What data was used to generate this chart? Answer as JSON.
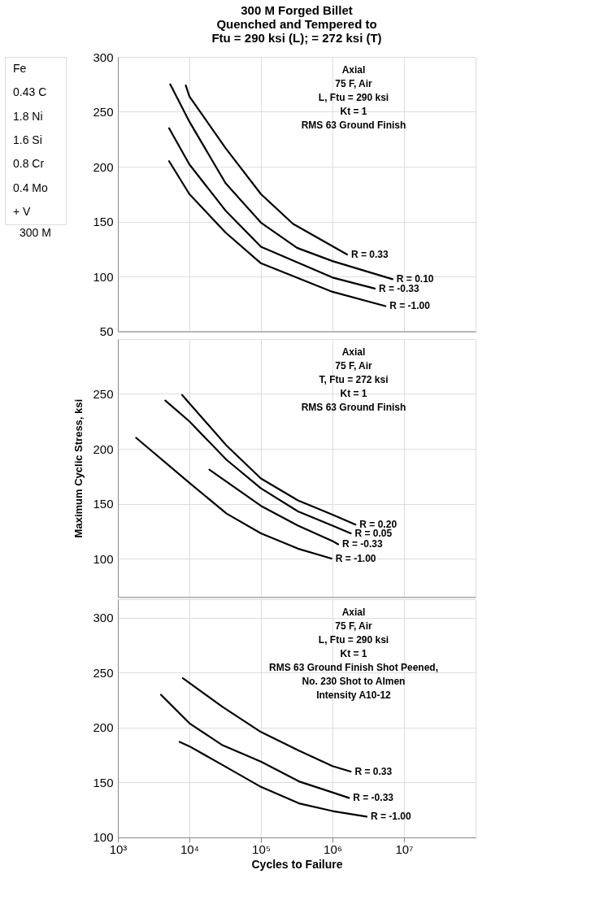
{
  "chart_data": [
    {
      "type": "other",
      "title": "300 M",
      "annotations": [
        "Fe",
        "0.43 C",
        "1.8 Ni",
        "1.6 Si",
        "0.8 Cr",
        "0.4 Mo",
        "+ V"
      ]
    },
    {
      "type": "line",
      "title": [
        "300 M Forged Billet",
        "Quenched and Tempered to",
        "Ftu = 290 ksi (L); = 272 ksi (T)"
      ],
      "log": "x",
      "grid": true,
      "tick_labels": "y",
      "xlim": [
        1000,
        100000000
      ],
      "xticks": [
        1000,
        10000,
        100000,
        1000000,
        10000000
      ],
      "ylim": [
        50,
        300
      ],
      "yticks": [
        50,
        100,
        150,
        200,
        250,
        300
      ],
      "annotations": [
        "Axial",
        "75 F, Air",
        "L, Ftu = 290 ksi",
        "Kt = 1",
        "RMS 63 Ground Finish"
      ],
      "series": [
        {
          "name": "R = 0.33",
          "color": "#000000",
          "x": [
            8900,
            10000,
            32000,
            100000,
            280000,
            1600000
          ],
          "values": [
            274,
            264,
            217,
            175,
            148,
            120
          ]
        },
        {
          "name": "R = 0.10",
          "color": "#000000",
          "x": [
            5400,
            10000,
            32000,
            100000,
            320000,
            1000000,
            6900000
          ],
          "values": [
            275,
            241,
            185,
            149,
            126,
            114,
            97.5
          ]
        },
        {
          "name": "R = -0.33",
          "color": "#000000",
          "x": [
            5200,
            10000,
            32000,
            100000,
            1000000,
            3900000
          ],
          "values": [
            235,
            202,
            160,
            127,
            99,
            89
          ]
        },
        {
          "name": "R = -1.00",
          "color": "#000000",
          "x": [
            5200,
            10000,
            32000,
            100000,
            1000000,
            5500000
          ],
          "values": [
            205,
            175,
            140,
            112,
            86,
            73
          ]
        }
      ]
    },
    {
      "type": "line",
      "ylabel": "Maximum Cyclic Stress, ksi",
      "log": "x",
      "grid": true,
      "tick_labels": "y",
      "xlim": [
        1000,
        100000000
      ],
      "xticks": [
        1000,
        10000,
        100000,
        1000000,
        10000000
      ],
      "ylim": [
        65,
        300
      ],
      "yticks": [
        100,
        150,
        200,
        250
      ],
      "annotations": [
        "Axial",
        "75 F, Air",
        "T, Ftu = 272 ksi",
        "Kt = 1",
        "RMS 63 Ground Finish"
      ],
      "series": [
        {
          "name": "R = 0.20",
          "color": "#000000",
          "x": [
            7900,
            33000,
            100000,
            330000,
            1000000,
            2100000
          ],
          "values": [
            249,
            203,
            173,
            153,
            140,
            131
          ]
        },
        {
          "name": "R = 0.05",
          "color": "#000000",
          "x": [
            4600,
            10000,
            33000,
            100000,
            330000,
            1000000,
            1800000
          ],
          "values": [
            244,
            225,
            190,
            164,
            143,
            130,
            123
          ]
        },
        {
          "name": "R = -0.33",
          "color": "#000000",
          "x": [
            19000,
            100000,
            330000,
            1000000,
            1200000
          ],
          "values": [
            181,
            148,
            130,
            116,
            113
          ]
        },
        {
          "name": "R = -1.00",
          "color": "#000000",
          "x": [
            1800,
            10000,
            33000,
            100000,
            330000,
            970000
          ],
          "values": [
            210,
            169,
            141,
            123,
            109,
            100
          ]
        }
      ]
    },
    {
      "type": "line",
      "xlabel": "Cycles to Failure",
      "log": "x",
      "grid": true,
      "xlim": [
        1000,
        100000000
      ],
      "xticks": [
        {
          "value": 1000,
          "label": "10³"
        },
        {
          "value": 10000,
          "label": "10⁴"
        },
        {
          "value": 100000,
          "label": "10⁵"
        },
        {
          "value": 1000000,
          "label": "10⁶"
        },
        {
          "value": 10000000,
          "label": "10⁷"
        }
      ],
      "ylim": [
        100,
        317
      ],
      "yticks": [
        100,
        150,
        200,
        250,
        300
      ],
      "annotations": [
        "Axial",
        "75 F, Air",
        "L, Ftu = 290 ksi",
        "Kt = 1",
        "RMS 63 Ground Finish Shot Peened,",
        "No. 230 Shot to Almen",
        "Intensity A10-12"
      ],
      "series": [
        {
          "name": "R = 0.33",
          "color": "#000000",
          "x": [
            8100,
            29000,
            100000,
            340000,
            1000000,
            1800000
          ],
          "values": [
            245,
            219,
            196,
            179,
            165,
            160
          ]
        },
        {
          "name": "R = -0.33",
          "color": "#000000",
          "x": [
            4000,
            10000,
            29000,
            100000,
            340000,
            1000000,
            1700000
          ],
          "values": [
            230,
            204,
            184,
            169,
            151,
            141,
            136
          ]
        },
        {
          "name": "R = -1.00",
          "color": "#000000",
          "x": [
            7300,
            10000,
            29000,
            100000,
            340000,
            1000000,
            3000000
          ],
          "values": [
            187,
            183,
            166,
            146,
            131,
            124,
            119
          ]
        }
      ]
    }
  ]
}
